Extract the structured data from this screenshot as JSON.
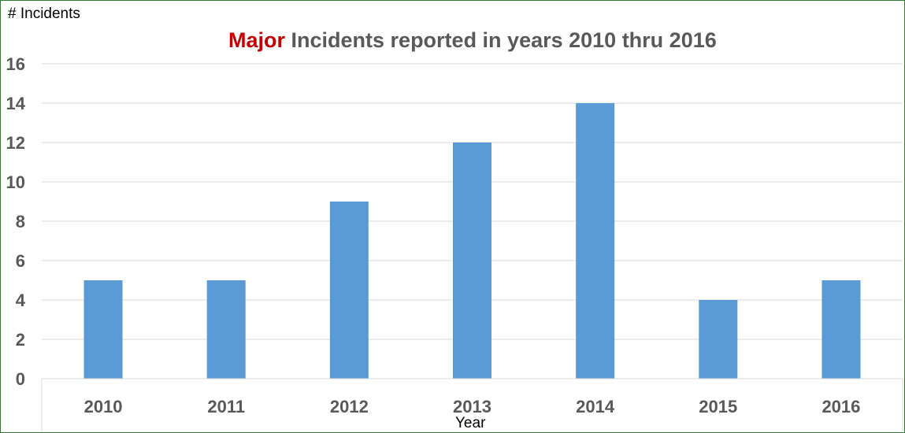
{
  "chart_data": {
    "type": "bar",
    "title_highlight": "Major",
    "title_rest": " Incidents reported in years 2010 thru 2016",
    "ylabel": "# Incidents",
    "xlabel": "Year",
    "categories": [
      "2010",
      "2011",
      "2012",
      "2013",
      "2014",
      "2015",
      "2016"
    ],
    "values": [
      5,
      5,
      9,
      12,
      14,
      4,
      5
    ],
    "ylim": [
      0,
      16
    ],
    "yticks": [
      0,
      2,
      4,
      6,
      8,
      10,
      12,
      14,
      16
    ],
    "grid": true,
    "bar_color": "#5b9bd5",
    "title_highlight_color": "#c00000"
  }
}
